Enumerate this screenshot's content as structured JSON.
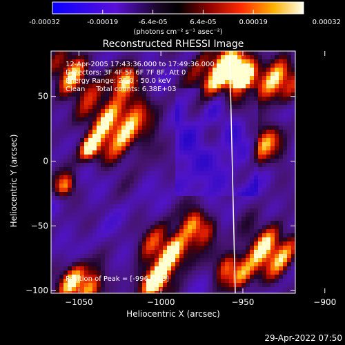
{
  "colorbar": {
    "tick_labels": [
      "-0.00032",
      "-0.00019",
      "-6.4e-05",
      "6.4e-05",
      "0.00019",
      "0.00032"
    ],
    "unit_label": "(photons cm⁻² s⁻¹ asec⁻²)",
    "range": [
      -0.00032,
      0.00032
    ]
  },
  "chart_data": {
    "type": "heatmap",
    "title": "Reconstructed RHESSI Image",
    "xlabel": "Heliocentric X (arcsec)",
    "ylabel": "Heliocentric Y (arcsec)",
    "xlim": [
      -1067,
      -918
    ],
    "ylim": [
      -102,
      85
    ],
    "x_ticks": [
      {
        "value": -1050,
        "label": "−1050"
      },
      {
        "value": -1000,
        "label": "−1000"
      },
      {
        "value": -950,
        "label": "−950"
      },
      {
        "value": -900,
        "label": "−900"
      }
    ],
    "y_ticks": [
      {
        "value": -100,
        "label": "−100"
      },
      {
        "value": -50,
        "label": "−50"
      },
      {
        "value": 0,
        "label": "0"
      },
      {
        "value": 50,
        "label": "50"
      }
    ],
    "info_lines": [
      "12-Apr-2005 17:43:36.000 to 17:49:36.000",
      "Detectors: 3F 4F 5F 6F 7F 8F, Att 0",
      "Energy Range: 25.0 - 50.0 keV",
      "Clean     Total counts: 6.38E+03"
    ],
    "peak_label": "Position of Peak = [-996,-103]",
    "peak_position": [
      -996,
      -103
    ],
    "limb_x": -958
  },
  "footer": {
    "timestamp": "29-Apr-2022 07:50"
  }
}
